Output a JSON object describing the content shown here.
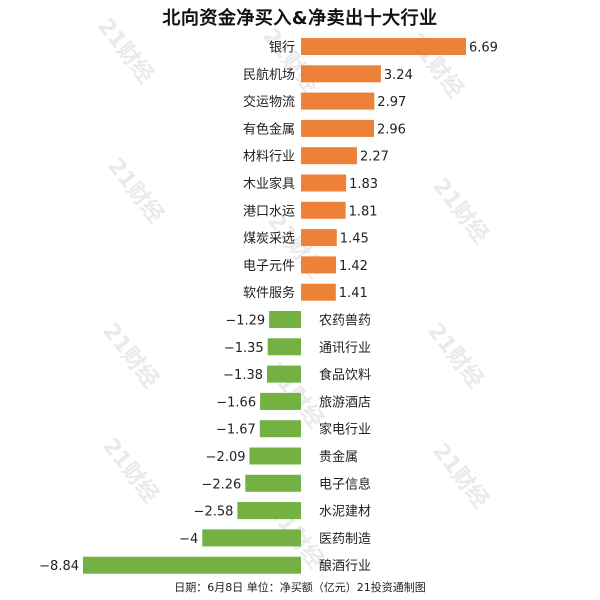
{
  "chart_data": {
    "type": "bar",
    "orientation": "horizontal",
    "title": "北向资金净买入&净卖出十大行业",
    "categories": [
      "银行",
      "民航机场",
      "交运物流",
      "有色金属",
      "材料行业",
      "木业家具",
      "港口水运",
      "煤炭采选",
      "电子元件",
      "软件服务",
      "农药兽药",
      "通讯行业",
      "食品饮料",
      "旅游酒店",
      "家电行业",
      "贵金属",
      "电子信息",
      "水泥建材",
      "医药制造",
      "酿酒行业"
    ],
    "values": [
      6.69,
      3.24,
      2.97,
      2.96,
      2.27,
      1.83,
      1.81,
      1.45,
      1.42,
      1.41,
      -1.29,
      -1.35,
      -1.38,
      -1.66,
      -1.67,
      -2.09,
      -2.26,
      -2.58,
      -4,
      -8.84
    ],
    "value_labels": [
      "6.69",
      "3.24",
      "2.97",
      "2.96",
      "2.27",
      "1.83",
      "1.81",
      "1.45",
      "1.42",
      "1.41",
      "−1.29",
      "−1.35",
      "−1.38",
      "−1.66",
      "−1.67",
      "−2.09",
      "−2.26",
      "−2.58",
      "−4",
      "−8.84"
    ],
    "xlim": [
      -9.2,
      7.2
    ],
    "grid": false,
    "legend": "none",
    "colors": {
      "positive": "#ee8138",
      "negative": "#72b142"
    }
  },
  "footer": "日期：6月8日  单位：净买额（亿元）21投资通制图",
  "watermark": "21财经"
}
